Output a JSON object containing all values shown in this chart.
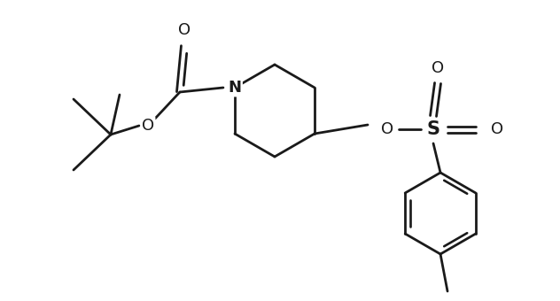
{
  "background_color": "#ffffff",
  "line_color": "#1a1a1a",
  "line_width": 2.0,
  "figure_size": [
    6.32,
    3.4
  ],
  "dpi": 100,
  "xlim": [
    0,
    6.32
  ],
  "ylim": [
    0,
    3.4
  ]
}
